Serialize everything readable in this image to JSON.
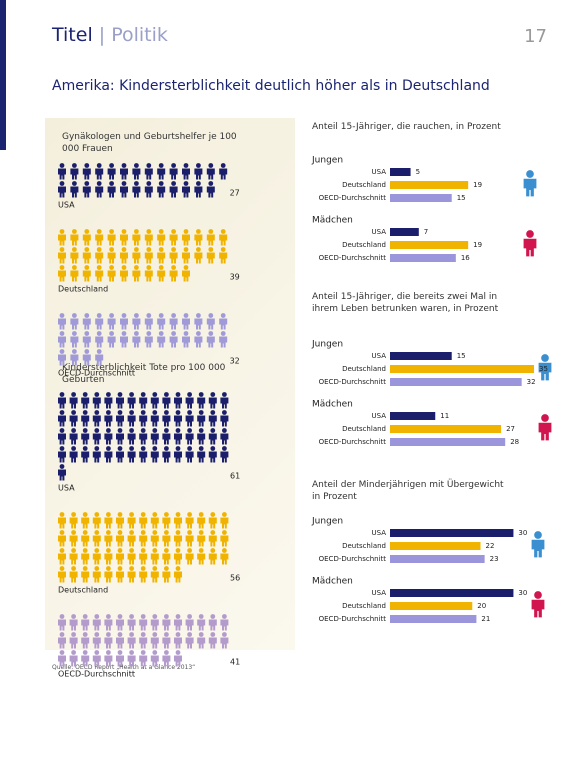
{
  "header": {
    "section": "Titel",
    "subsection": "Politik",
    "page": "17"
  },
  "headline": "Amerika: Kindersterblichkeit deutlich höher als in Deutschland",
  "source": "Quelle: OECD Report „Health at a Glance 2013“",
  "chart_data": [
    {
      "type": "pictogram",
      "title": "Gynäkologen und Geburtshelfer je 100 000 Frauen",
      "categories": [
        "USA",
        "Deutschland",
        "OECD-Durchschnitt"
      ],
      "values": [
        27,
        39,
        32
      ],
      "colors": [
        "#1b1f6b",
        "#f0b400",
        "#a09ad8"
      ]
    },
    {
      "type": "pictogram",
      "title": "Kindersterblichkeit Tote pro 100 000 Geburten",
      "categories": [
        "USA",
        "Deutschland",
        "OECD-Durchschnitt"
      ],
      "values": [
        61,
        56,
        41
      ],
      "colors": [
        "#1b1f6b",
        "#f0b400",
        "#b39ccc"
      ]
    },
    {
      "type": "bar",
      "title": "Anteil 15-Jähriger, die rauchen, in Prozent",
      "categories": [
        "USA",
        "Deutschland",
        "OECD-Durchschnitt"
      ],
      "colors": [
        "#1b1f6b",
        "#f0b400",
        "#9b95dc"
      ],
      "xlim": [
        0,
        35
      ],
      "groups": [
        {
          "name": "Jungen",
          "values": [
            5,
            19,
            15
          ]
        },
        {
          "name": "Mädchen",
          "values": [
            7,
            19,
            16
          ]
        }
      ]
    },
    {
      "type": "bar",
      "title": "Anteil 15-Jähriger, die bereits zwei Mal in ihrem Leben betrunken waren, in Prozent",
      "categories": [
        "USA",
        "Deutschland",
        "OECD-Durchschnitt"
      ],
      "colors": [
        "#1b1f6b",
        "#f0b400",
        "#9b95dc"
      ],
      "xlim": [
        0,
        35
      ],
      "groups": [
        {
          "name": "Jungen",
          "values": [
            15,
            35,
            32
          ]
        },
        {
          "name": "Mädchen",
          "values": [
            11,
            27,
            28
          ]
        }
      ]
    },
    {
      "type": "bar",
      "title": "Anteil der Minderjährigen mit Übergewicht in Prozent",
      "categories": [
        "USA",
        "Deutschland",
        "OECD-Durchschnitt"
      ],
      "colors": [
        "#1b1f6b",
        "#f0b400",
        "#9b95dc"
      ],
      "xlim": [
        0,
        35
      ],
      "groups": [
        {
          "name": "Jungen",
          "values": [
            30,
            22,
            23
          ]
        },
        {
          "name": "Mädchen",
          "values": [
            30,
            20,
            21
          ]
        }
      ]
    }
  ]
}
